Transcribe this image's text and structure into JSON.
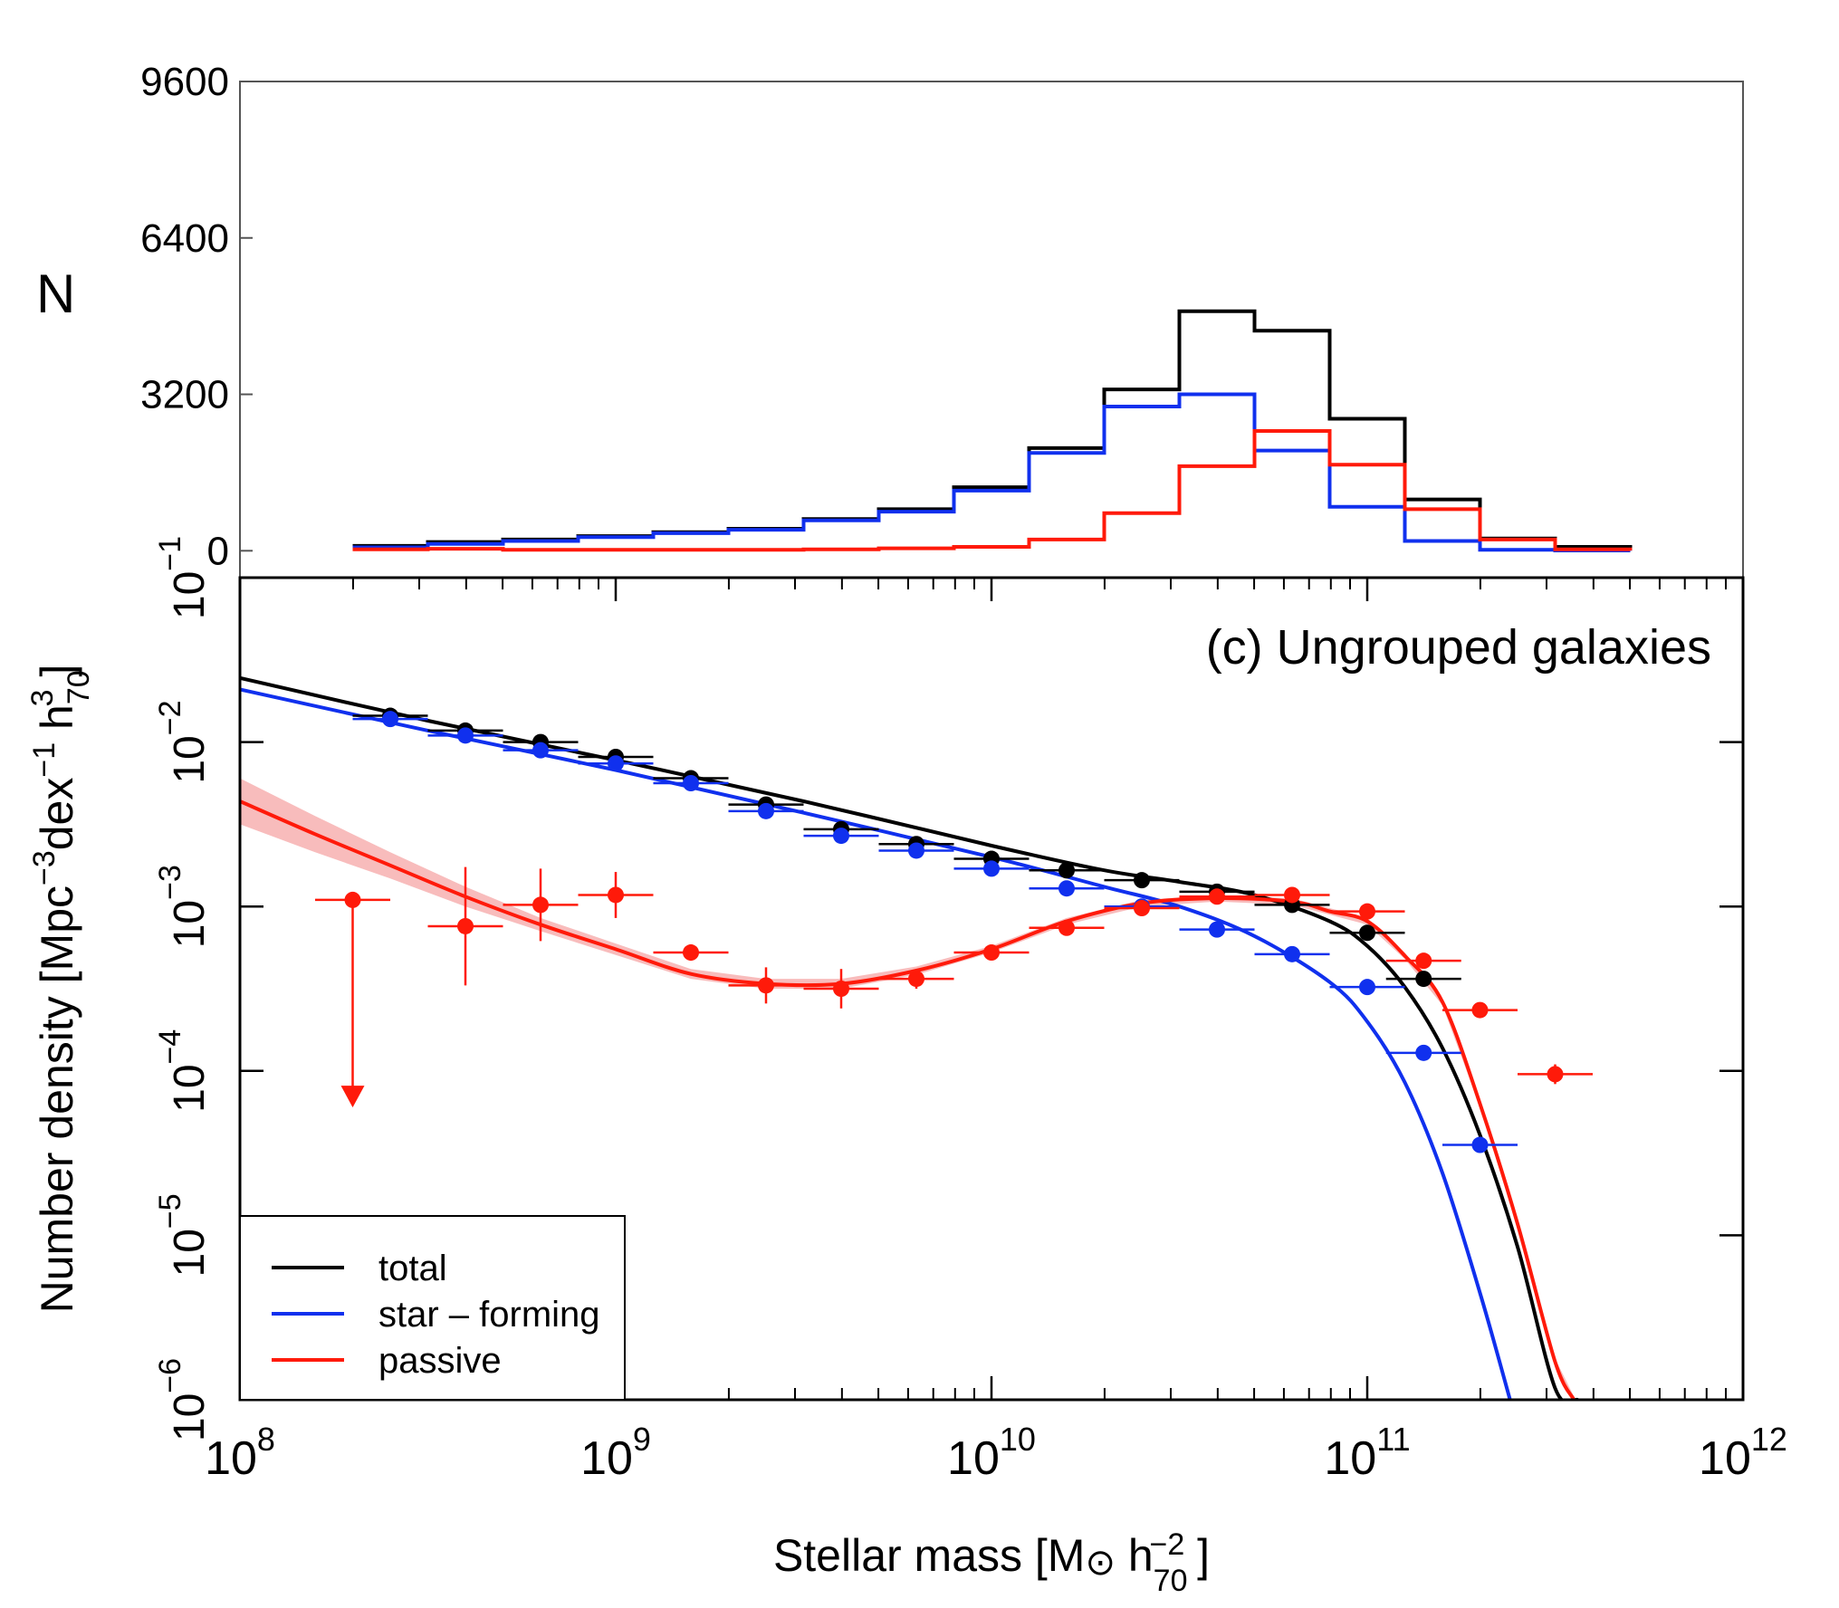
{
  "chart_data": [
    {
      "type": "histogram",
      "ylabel": "N",
      "yticks": [
        0,
        3200,
        6400,
        9600
      ],
      "ylim": [
        -550,
        9600
      ],
      "xlim_log10": [
        8,
        12
      ],
      "bin_edges_log10": [
        8.3,
        8.5,
        8.7,
        8.9,
        9.1,
        9.3,
        9.5,
        9.7,
        9.9,
        10.1,
        10.3,
        10.5,
        10.7,
        10.9,
        11.1,
        11.3,
        11.5,
        11.7
      ],
      "series": [
        {
          "name": "total",
          "color": "#000000",
          "values": [
            100,
            180,
            230,
            300,
            380,
            450,
            650,
            850,
            1300,
            2100,
            3300,
            4900,
            4500,
            2700,
            1050,
            250,
            80,
            20
          ]
        },
        {
          "name": "star-forming",
          "color": "#1030ee",
          "values": [
            70,
            140,
            200,
            280,
            360,
            430,
            620,
            800,
            1230,
            2000,
            2950,
            3200,
            2050,
            900,
            200,
            20,
            5,
            0
          ]
        },
        {
          "name": "passive",
          "color": "#ff1a0a",
          "values": [
            30,
            40,
            20,
            20,
            20,
            20,
            30,
            50,
            80,
            230,
            770,
            1730,
            2450,
            1760,
            850,
            230,
            30,
            5
          ]
        }
      ]
    },
    {
      "type": "scatter_with_fits",
      "title": "(c) Ungrouped galaxies",
      "xlabel": "Stellar mass [M⊙ h70−2 ]",
      "ylabel": "Number density [Mpc−3dex−1 h703 ]",
      "xlim_log10": [
        8,
        12
      ],
      "ylim_log10": [
        -6,
        -1
      ],
      "xticks": [
        "10^8",
        "10^9",
        "10^10",
        "10^11",
        "10^12"
      ],
      "yticks": [
        "10^-6",
        "10^-5",
        "10^-4",
        "10^-3",
        "10^-2",
        "10^-1"
      ],
      "legend": {
        "position": "lower-left",
        "entries": [
          {
            "label": "total",
            "color": "#000000"
          },
          {
            "label": "star – forming",
            "color": "#1030ee"
          },
          {
            "label": "passive",
            "color": "#ff1a0a"
          }
        ]
      },
      "bin_halfwidth_dex": 0.1,
      "points": [
        {
          "series": "total",
          "color": "#000000",
          "x": [
            8.4,
            8.6,
            8.8,
            9.0,
            9.2,
            9.4,
            9.6,
            9.8,
            10.0,
            10.2,
            10.4,
            10.6,
            10.8,
            11.0,
            11.15
          ],
          "y": [
            -1.84,
            -1.93,
            -2.0,
            -2.09,
            -2.22,
            -2.38,
            -2.53,
            -2.62,
            -2.71,
            -2.78,
            -2.84,
            -2.91,
            -2.99,
            -3.16,
            -3.44
          ]
        },
        {
          "series": "star-forming",
          "color": "#1030ee",
          "x": [
            8.4,
            8.6,
            8.8,
            9.0,
            9.2,
            9.4,
            9.6,
            9.8,
            10.0,
            10.2,
            10.4,
            10.6,
            10.8,
            11.0,
            11.15,
            11.3
          ],
          "y": [
            -1.86,
            -1.96,
            -2.05,
            -2.13,
            -2.25,
            -2.42,
            -2.57,
            -2.66,
            -2.77,
            -2.89,
            -3.0,
            -3.14,
            -3.29,
            -3.49,
            -3.89,
            -4.45
          ]
        },
        {
          "series": "passive",
          "color": "#ff1a0a",
          "x": [
            8.6,
            8.8,
            9.0,
            9.2,
            9.4,
            9.6,
            9.8,
            10.0,
            10.2,
            10.4,
            10.6,
            10.8,
            11.0,
            11.15,
            11.3,
            11.5
          ],
          "y": [
            -3.12,
            -2.99,
            -2.93,
            -3.28,
            -3.48,
            -3.5,
            -3.44,
            -3.28,
            -3.13,
            -3.01,
            -2.94,
            -2.93,
            -3.03,
            -3.33,
            -3.63,
            -4.02
          ]
        },
        {
          "series": "passive",
          "color": "#ff1a0a",
          "x": [
            8.3
          ],
          "y": [
            -2.96
          ],
          "upper_limit_to": -4.2
        }
      ],
      "errorbar_y_dex": {
        "passive": [
          0.36,
          0.22,
          0.14,
          0.05,
          0.11,
          0.12,
          0.06,
          0.04,
          0.03,
          0.03,
          0.03,
          0.03,
          0.03,
          0.03,
          0.03,
          0.06
        ],
        "total": 0.02,
        "star-forming": 0.02
      },
      "fits": [
        {
          "series": "total",
          "color": "#000000",
          "x": [
            8.0,
            8.5,
            9.0,
            9.5,
            10.0,
            10.3,
            10.5,
            10.7,
            10.9,
            11.0,
            11.1,
            11.2,
            11.3,
            11.4,
            11.5,
            11.56
          ],
          "y": [
            -1.61,
            -1.87,
            -2.11,
            -2.36,
            -2.63,
            -2.78,
            -2.85,
            -2.93,
            -3.09,
            -3.24,
            -3.49,
            -3.86,
            -4.39,
            -5.07,
            -5.93,
            -6.0
          ]
        },
        {
          "series": "star-forming",
          "color": "#1030ee",
          "x": [
            8.0,
            8.5,
            9.0,
            9.5,
            10.0,
            10.3,
            10.5,
            10.7,
            10.9,
            11.0,
            11.1,
            11.2,
            11.3,
            11.38
          ],
          "y": [
            -1.68,
            -1.93,
            -2.17,
            -2.43,
            -2.7,
            -2.88,
            -3.0,
            -3.18,
            -3.46,
            -3.7,
            -4.07,
            -4.62,
            -5.35,
            -6.0
          ]
        },
        {
          "series": "passive",
          "color": "#ff1a0a",
          "x": [
            8.0,
            8.2,
            8.4,
            8.6,
            8.8,
            9.0,
            9.2,
            9.4,
            9.6,
            9.8,
            10.0,
            10.2,
            10.4,
            10.6,
            10.8,
            10.9,
            11.0,
            11.1,
            11.2,
            11.3,
            11.4,
            11.5,
            11.55
          ],
          "y": [
            -2.36,
            -2.56,
            -2.75,
            -2.94,
            -3.11,
            -3.26,
            -3.41,
            -3.47,
            -3.47,
            -3.39,
            -3.26,
            -3.09,
            -2.98,
            -2.95,
            -2.97,
            -3.03,
            -3.09,
            -3.3,
            -3.58,
            -4.2,
            -4.93,
            -5.77,
            -6.0
          ]
        }
      ],
      "passive_fit_band_dex": [
        0.14,
        0.11,
        0.08,
        0.06,
        0.04,
        0.035,
        0.03,
        0.03,
        0.03,
        0.025,
        0.02,
        0.02,
        0.02,
        0.02,
        0.02,
        0.02,
        0.02,
        0.02,
        0.02,
        0.02,
        0.02,
        0.02,
        0.02
      ]
    }
  ]
}
